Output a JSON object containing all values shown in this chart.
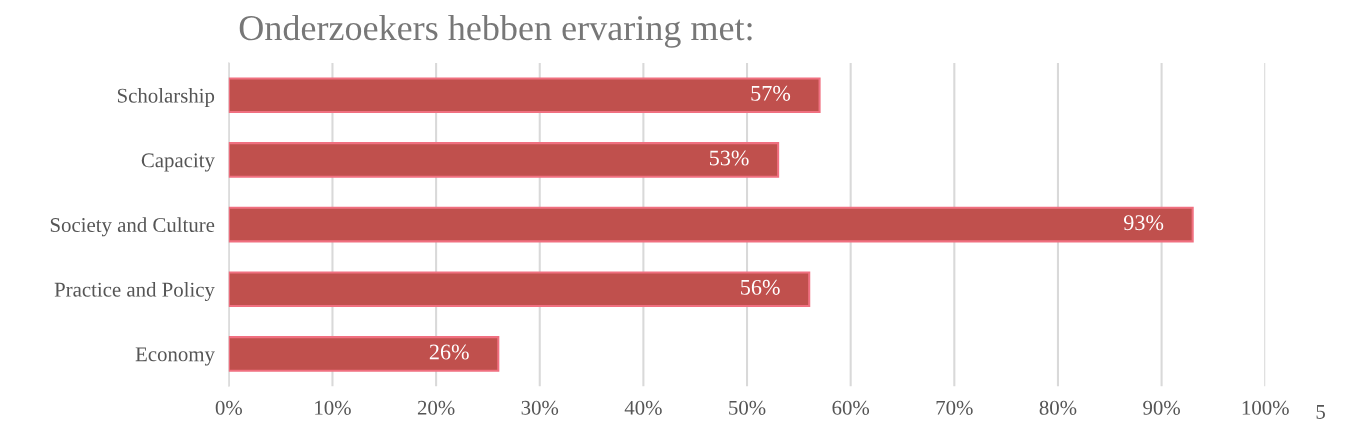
{
  "chart_data": {
    "type": "bar",
    "orientation": "horizontal",
    "title": "Onderzoekers hebben ervaring met:",
    "categories": [
      "Scholarship",
      "Capacity",
      "Society and Culture",
      "Practice and Policy",
      "Economy"
    ],
    "values": [
      57,
      53,
      93,
      56,
      26
    ],
    "color": "#c0504d",
    "value_labels": [
      "57%",
      "53%",
      "93%",
      "56%",
      "26%"
    ],
    "xlim": [
      0,
      100
    ],
    "xticks": [
      {
        "value": 0,
        "label": "0%"
      },
      {
        "value": 10,
        "label": "10%"
      },
      {
        "value": 20,
        "label": "20%"
      },
      {
        "value": 30,
        "label": "30%"
      },
      {
        "value": 40,
        "label": "40%"
      },
      {
        "value": 50,
        "label": "50%"
      },
      {
        "value": 60,
        "label": "60%"
      },
      {
        "value": 70,
        "label": "70%"
      },
      {
        "value": 80,
        "label": "80%"
      },
      {
        "value": 90,
        "label": "90%"
      },
      {
        "value": 100,
        "label": "100%"
      }
    ],
    "grid": "x",
    "legend": false,
    "annotations": [
      "5"
    ]
  }
}
